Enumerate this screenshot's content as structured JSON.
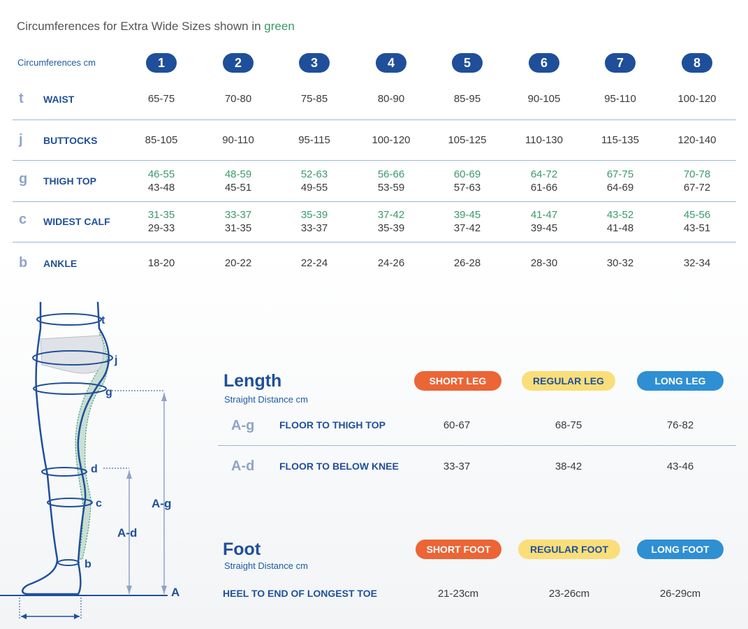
{
  "intro": {
    "text": "Circumferences for Extra Wide Sizes shown in ",
    "green_word": "green"
  },
  "circ_label": "Circumferences cm",
  "sizes": [
    "1",
    "2",
    "3",
    "4",
    "5",
    "6",
    "7",
    "8"
  ],
  "rows": [
    {
      "letter": "t",
      "name": "WAIST",
      "values": [
        [
          "65-75"
        ],
        [
          "70-80"
        ],
        [
          "75-85"
        ],
        [
          "80-90"
        ],
        [
          "85-95"
        ],
        [
          "90-105"
        ],
        [
          "95-110"
        ],
        [
          "100-120"
        ]
      ]
    },
    {
      "letter": "j",
      "name": "BUTTOCKS",
      "values": [
        [
          "85-105"
        ],
        [
          "90-110"
        ],
        [
          "95-115"
        ],
        [
          "100-120"
        ],
        [
          "105-125"
        ],
        [
          "110-130"
        ],
        [
          "115-135"
        ],
        [
          "120-140"
        ]
      ]
    },
    {
      "letter": "g",
      "name": "THIGH TOP",
      "green": [
        "46-55",
        "48-59",
        "52-63",
        "56-66",
        "60-69",
        "64-72",
        "67-75",
        "70-78"
      ],
      "values": [
        "43-48",
        "45-51",
        "49-55",
        "53-59",
        "57-63",
        "61-66",
        "64-69",
        "67-72"
      ]
    },
    {
      "letter": "c",
      "name": "WIDEST CALF",
      "green": [
        "31-35",
        "33-37",
        "35-39",
        "37-42",
        "39-45",
        "41-47",
        "43-52",
        "45-56"
      ],
      "values": [
        "29-33",
        "31-35",
        "33-37",
        "35-39",
        "37-42",
        "39-45",
        "41-48",
        "43-51"
      ]
    },
    {
      "letter": "b",
      "name": "ANKLE",
      "values": [
        [
          "18-20"
        ],
        [
          "20-22"
        ],
        [
          "22-24"
        ],
        [
          "24-26"
        ],
        [
          "26-28"
        ],
        [
          "28-30"
        ],
        [
          "30-32"
        ],
        [
          "32-34"
        ]
      ]
    }
  ],
  "length": {
    "title": "Length",
    "subtitle": "Straight Distance cm",
    "pills": [
      "SHORT LEG",
      "REGULAR LEG",
      "LONG LEG"
    ],
    "rows": [
      {
        "letter": "A-g",
        "name": "FLOOR TO THIGH TOP",
        "values": [
          "60-67",
          "68-75",
          "76-82"
        ]
      },
      {
        "letter": "A-d",
        "name": "FLOOR TO BELOW KNEE",
        "values": [
          "33-37",
          "38-42",
          "43-46"
        ]
      }
    ]
  },
  "foot": {
    "title": "Foot",
    "subtitle": "Straight Distance cm",
    "pills": [
      "SHORT FOOT",
      "REGULAR FOOT",
      "LONG FOOT"
    ],
    "row": {
      "name": "HEEL TO END OF LONGEST TOE",
      "values": [
        "21-23cm",
        "23-26cm",
        "26-29cm"
      ]
    }
  },
  "diagram": {
    "labels": [
      "t",
      "j",
      "g",
      "d",
      "c",
      "b",
      "A",
      "A-g",
      "A-d"
    ]
  },
  "colors": {
    "navy": "#1f4f9a",
    "green": "#3a9a6a",
    "orange": "#eb6536",
    "yellow": "#f9de7a",
    "blue": "#2f8fd3"
  }
}
